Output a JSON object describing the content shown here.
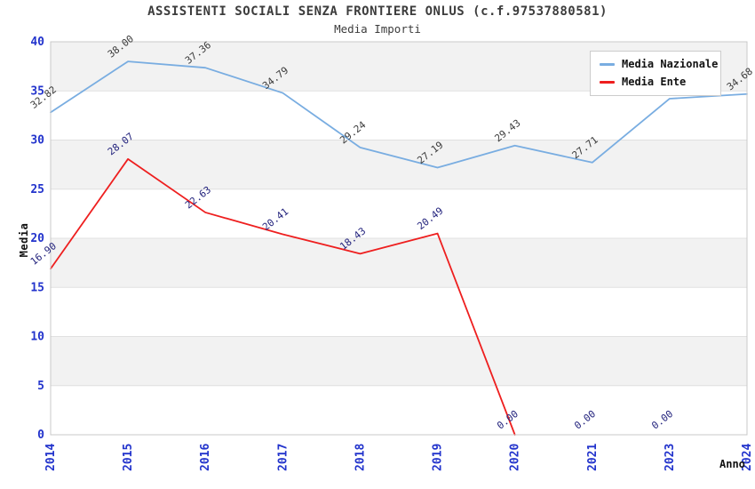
{
  "title": "ASSISTENTI SOCIALI SENZA FRONTIERE ONLUS (c.f.97537880581)",
  "subtitle": "Media Importi",
  "legend": {
    "items": [
      {
        "label": "Media Nazionale",
        "color": "#79ade1"
      },
      {
        "label": "Media Ente",
        "color": "#ee1f1f"
      }
    ]
  },
  "chart_data": {
    "type": "line",
    "title": "ASSISTENTI SOCIALI SENZA FRONTIERE ONLUS (c.f.97537880581)",
    "subtitle": "Media Importi",
    "x": [
      "2014",
      "2015",
      "2016",
      "2017",
      "2018",
      "2019",
      "2020",
      "2021",
      "2023",
      "2024"
    ],
    "xlabel": "Anno",
    "ylabel": "Media",
    "ylim": [
      0,
      40
    ],
    "ytick_step": 5,
    "yticks": [
      0,
      5,
      10,
      15,
      20,
      25,
      30,
      35,
      40
    ],
    "grid": true,
    "band_shading": true,
    "legend_position": "top-right",
    "series": [
      {
        "name": "Media Nazionale",
        "color": "#79ade1",
        "label_color": "#3b3b3b",
        "values": [
          32.82,
          38.0,
          37.36,
          34.79,
          29.24,
          27.19,
          29.43,
          27.71,
          34.21,
          34.68
        ]
      },
      {
        "name": "Media Ente",
        "color": "#ee1f1f",
        "label_color": "#23237d",
        "values": [
          16.9,
          28.07,
          22.63,
          20.41,
          18.43,
          20.49,
          0.0,
          0.0,
          0.0,
          null
        ]
      }
    ]
  },
  "colors": {
    "band_gray": "#f2f2f2",
    "gridline": "#e0e0e0",
    "plot_border": "#c9c9c9",
    "tick_label": "#2233cc",
    "axis_label": "#111111",
    "title": "#3c3c3c"
  }
}
